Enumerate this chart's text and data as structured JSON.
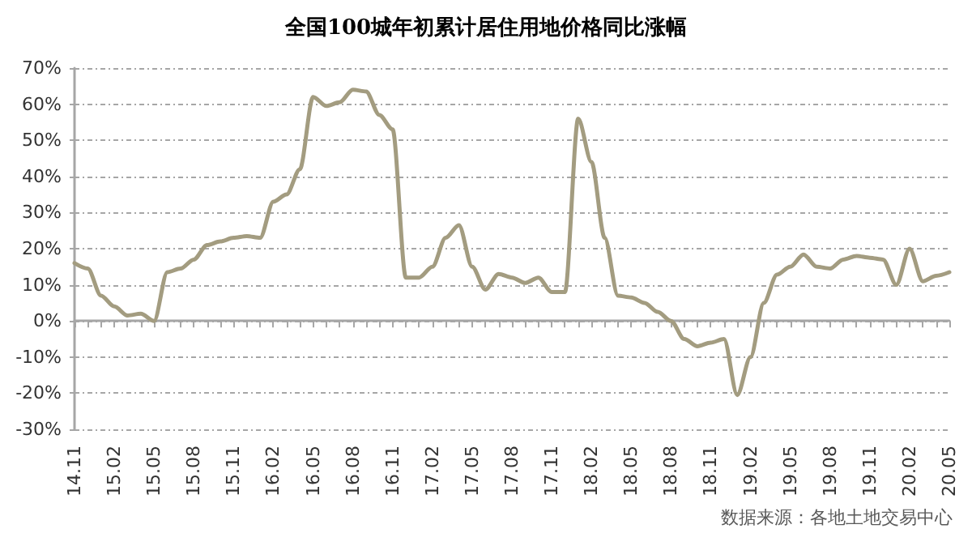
{
  "chart_data": {
    "type": "line",
    "title": "全国100城年初累计居住用地价格同比涨幅",
    "annotations": [
      "数据来源：各地土地交易中心"
    ],
    "categories": [
      "14.11",
      null,
      null,
      "15.02",
      null,
      null,
      "15.05",
      null,
      null,
      "15.08",
      null,
      null,
      "15.11",
      null,
      null,
      "16.02",
      null,
      null,
      "16.05",
      null,
      null,
      "16.08",
      null,
      null,
      "16.11",
      null,
      null,
      "17.02",
      null,
      null,
      "17.05",
      null,
      null,
      "17.08",
      null,
      null,
      "17.11",
      null,
      null,
      "18.02",
      null,
      null,
      "18.05",
      null,
      null,
      "18.08",
      null,
      null,
      "18.11",
      null,
      null,
      "19.02",
      null,
      null,
      "19.05",
      null,
      null,
      "19.08",
      null,
      null,
      "19.11",
      null,
      null,
      "20.02",
      null,
      null,
      "20.05"
    ],
    "series": [
      {
        "color": "#a39c80",
        "values": [
          16,
          14.5,
          7,
          4,
          1.5,
          2,
          0,
          13.5,
          14.5,
          17,
          21,
          22,
          23,
          23.5,
          23,
          33,
          35,
          42,
          62,
          59.5,
          60.5,
          64,
          63.5,
          57,
          53,
          12,
          12,
          15,
          23,
          26.5,
          15,
          8.7,
          13,
          12,
          10.5,
          12,
          8,
          8,
          56,
          44,
          23,
          7,
          6.5,
          5,
          2.5,
          0,
          -5,
          -7,
          -6,
          -5,
          -20.5,
          -10,
          5,
          12.8,
          15,
          18.4,
          15,
          14.5,
          17,
          18,
          17.5,
          17,
          10,
          20,
          11,
          12.5,
          13.5
        ]
      }
    ],
    "ylim": [
      -30,
      70
    ],
    "yticks": [
      {
        "value": -30,
        "label": "-30%"
      },
      {
        "value": -20,
        "label": "-20%"
      },
      {
        "value": -10,
        "label": "-10%"
      },
      {
        "value": 0,
        "label": "0%"
      },
      {
        "value": 10,
        "label": "10%"
      },
      {
        "value": 20,
        "label": "20%"
      },
      {
        "value": 30,
        "label": "30%"
      },
      {
        "value": 40,
        "label": "40%"
      },
      {
        "value": 50,
        "label": "50%"
      },
      {
        "value": 60,
        "label": "60%"
      },
      {
        "value": 70,
        "label": "70%"
      }
    ],
    "grid": "y",
    "marker": "none",
    "line_style": "solid"
  }
}
